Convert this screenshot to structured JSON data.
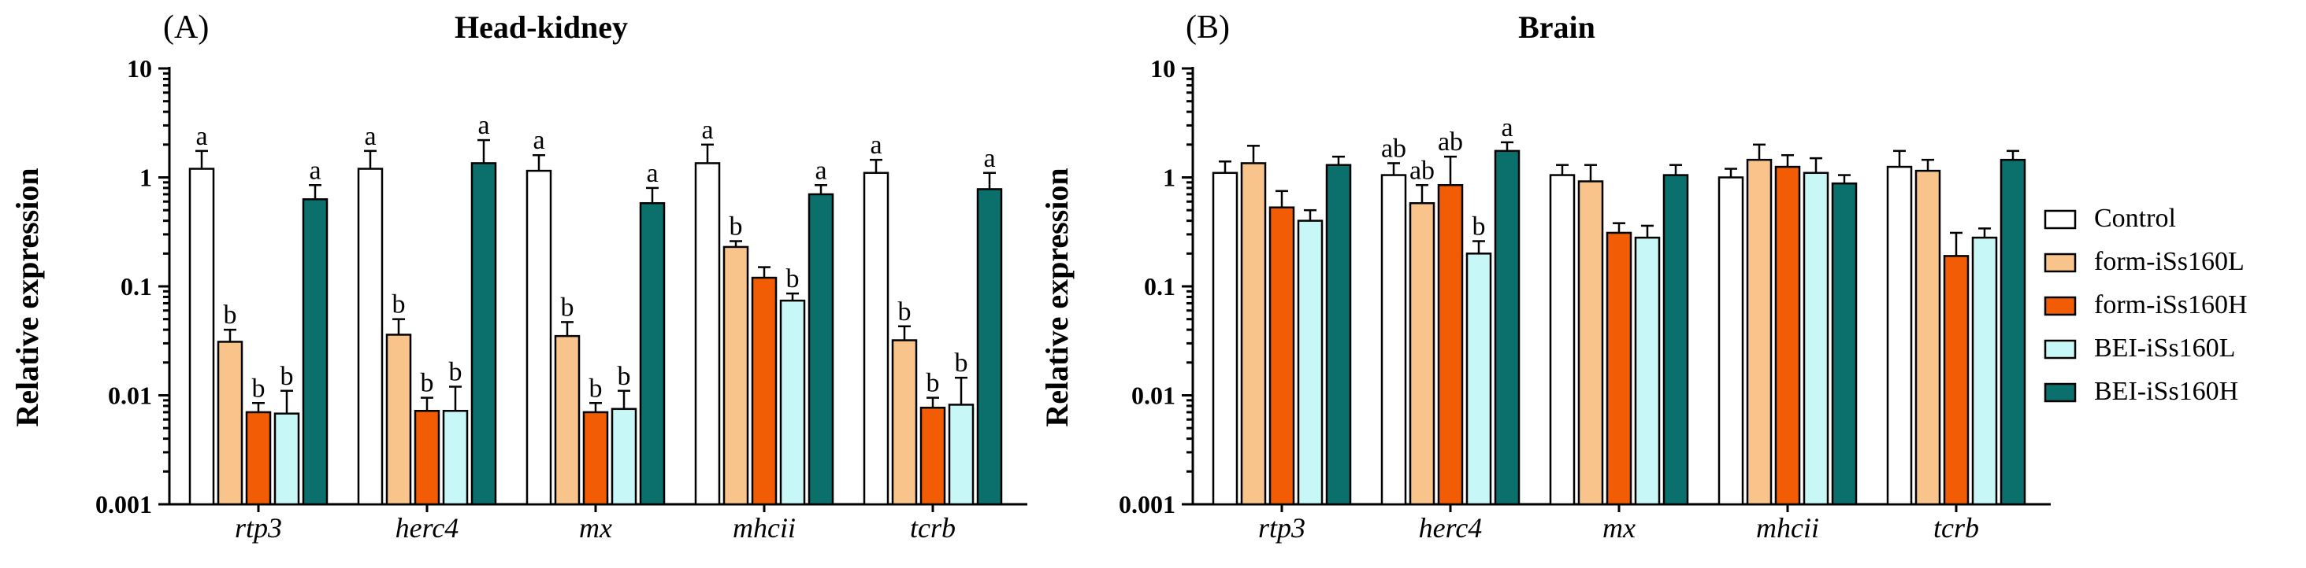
{
  "legend": {
    "entries": [
      {
        "name": "Control",
        "color": "#ffffff"
      },
      {
        "name": "form-iSs160L",
        "color": "#f9c48c"
      },
      {
        "name": "form-iSs160H",
        "color": "#f25c05"
      },
      {
        "name": "BEI-iSs160L",
        "color": "#c8f7f7"
      },
      {
        "name": "BEI-iSs160H",
        "color": "#0b6f6c"
      }
    ]
  },
  "chart_data": [
    {
      "type": "bar",
      "panel_label": "(A)",
      "title": "Head-kidney",
      "ylabel": "Relative expression",
      "yscale": "log",
      "ylim": [
        0.001,
        10
      ],
      "yticks": [
        "0.001",
        "0.01",
        "0.1",
        "1",
        "10"
      ],
      "categories": [
        "rtp3",
        "herc4",
        "mx",
        "mhcii",
        "tcrb"
      ],
      "series": [
        {
          "name": "Control",
          "values": [
            1.2,
            1.2,
            1.15,
            1.35,
            1.1
          ],
          "errors": [
            1.75,
            1.75,
            1.6,
            2.0,
            1.45
          ],
          "labels": [
            "a",
            "a",
            "a",
            "a",
            "a"
          ]
        },
        {
          "name": "form-iSs160L",
          "values": [
            0.031,
            0.036,
            0.035,
            0.23,
            0.032
          ],
          "errors": [
            0.04,
            0.05,
            0.047,
            0.26,
            0.043
          ],
          "labels": [
            "b",
            "b",
            "b",
            "b",
            "b"
          ]
        },
        {
          "name": "form-iSs160H",
          "values": [
            0.007,
            0.0072,
            0.007,
            0.12,
            0.0077
          ],
          "errors": [
            0.0085,
            0.0095,
            0.0085,
            0.15,
            0.0095
          ],
          "labels": [
            "b",
            "b",
            "b",
            "",
            "b"
          ]
        },
        {
          "name": "BEI-iSs160L",
          "values": [
            0.0068,
            0.0072,
            0.0075,
            0.074,
            0.0082
          ],
          "errors": [
            0.011,
            0.012,
            0.011,
            0.086,
            0.0145
          ],
          "labels": [
            "b",
            "b",
            "b",
            "b",
            "b"
          ]
        },
        {
          "name": "BEI-iSs160H",
          "values": [
            0.63,
            1.35,
            0.58,
            0.7,
            0.78
          ],
          "errors": [
            0.85,
            2.2,
            0.8,
            0.85,
            1.1
          ],
          "labels": [
            "a",
            "a",
            "a",
            "a",
            "a"
          ]
        }
      ]
    },
    {
      "type": "bar",
      "panel_label": "(B)",
      "title": "Brain",
      "ylabel": "Relative expression",
      "yscale": "log",
      "ylim": [
        0.001,
        10
      ],
      "yticks": [
        "0.001",
        "0.01",
        "0.1",
        "1",
        "10"
      ],
      "categories": [
        "rtp3",
        "herc4",
        "mx",
        "mhcii",
        "tcrb"
      ],
      "series": [
        {
          "name": "Control",
          "values": [
            1.1,
            1.05,
            1.05,
            1.0,
            1.25
          ],
          "errors": [
            1.4,
            1.35,
            1.3,
            1.2,
            1.75
          ],
          "labels": [
            "",
            "ab",
            "",
            "",
            ""
          ]
        },
        {
          "name": "form-iSs160L",
          "values": [
            1.35,
            0.58,
            0.92,
            1.45,
            1.15
          ],
          "errors": [
            1.95,
            0.85,
            1.3,
            2.0,
            1.45
          ],
          "labels": [
            "",
            "ab",
            "",
            "",
            ""
          ]
        },
        {
          "name": "form-iSs160H",
          "values": [
            0.53,
            0.85,
            0.31,
            1.25,
            0.19
          ],
          "errors": [
            0.75,
            1.55,
            0.38,
            1.6,
            0.31
          ],
          "labels": [
            "",
            "ab",
            "",
            "",
            ""
          ]
        },
        {
          "name": "BEI-iSs160L",
          "values": [
            0.4,
            0.2,
            0.28,
            1.1,
            0.28
          ],
          "errors": [
            0.5,
            0.26,
            0.36,
            1.5,
            0.34
          ],
          "labels": [
            "",
            "b",
            "",
            "",
            ""
          ]
        },
        {
          "name": "BEI-iSs160H",
          "values": [
            1.3,
            1.75,
            1.05,
            0.88,
            1.45
          ],
          "errors": [
            1.55,
            2.1,
            1.3,
            1.05,
            1.75
          ],
          "labels": [
            "",
            "a",
            "",
            "",
            ""
          ]
        }
      ]
    }
  ]
}
